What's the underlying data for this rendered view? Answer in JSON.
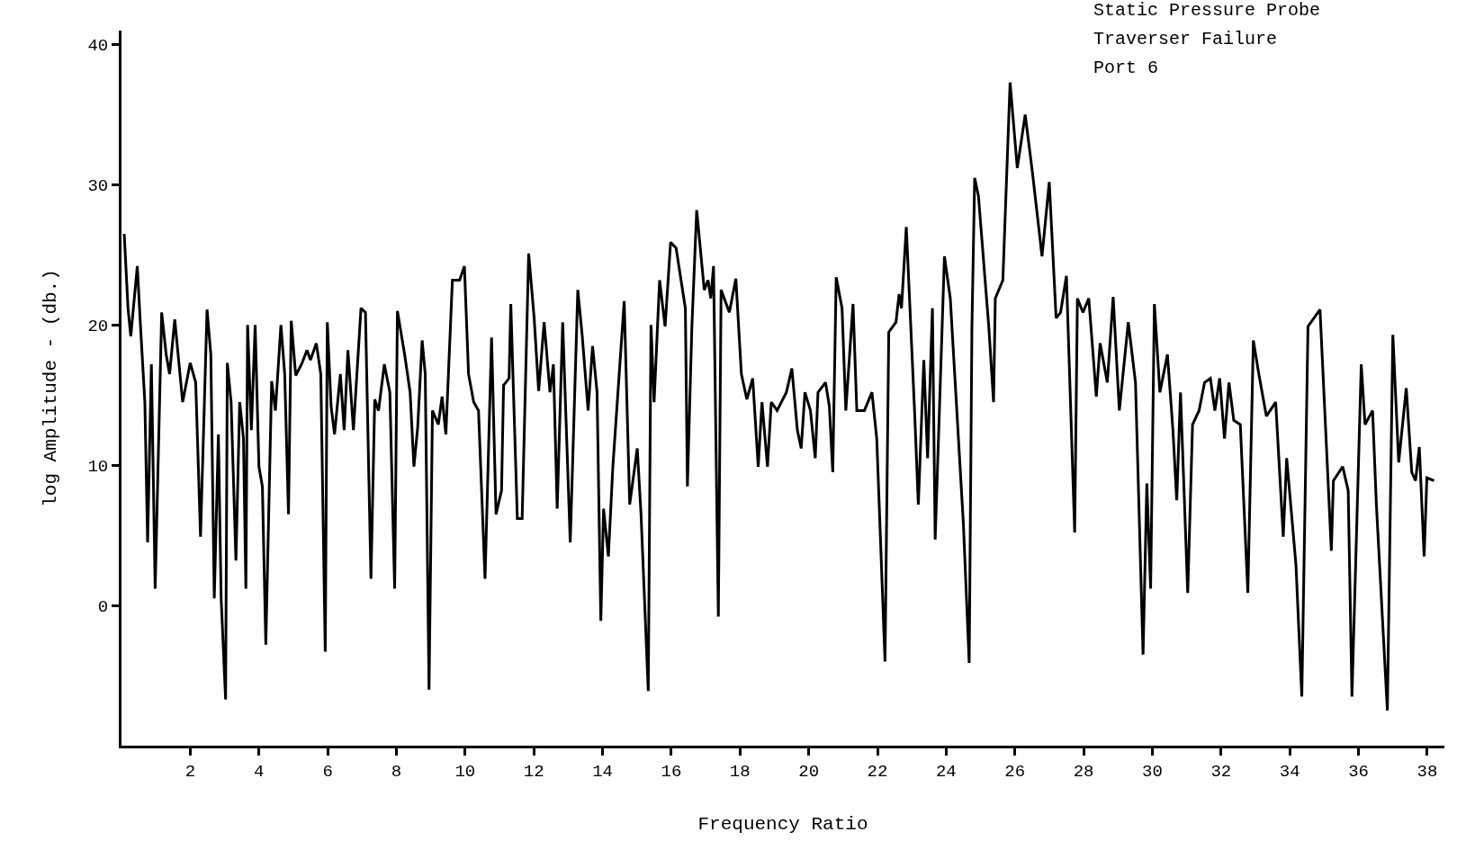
{
  "chart_data": {
    "type": "line",
    "xlabel": "Frequency Ratio",
    "ylabel": "log Amplitude - (db.)",
    "annotations": [
      "Static Pressure Probe",
      "Traverser Failure",
      "Port 6"
    ],
    "xlim": [
      0,
      38.5
    ],
    "xticks": [
      2,
      4,
      6,
      8,
      10,
      12,
      14,
      16,
      18,
      20,
      22,
      24,
      26,
      28,
      30,
      32,
      34,
      36,
      38
    ],
    "ylim": [
      -10,
      41
    ],
    "yticks": [
      0,
      10,
      20,
      30,
      40
    ],
    "grid": false,
    "marker": "none",
    "line_style": "solid",
    "series": [
      {
        "color": "#000000",
        "x": [
          0.08,
          0.19,
          0.27,
          0.46,
          0.54,
          0.68,
          0.76,
          0.87,
          0.98,
          1.17,
          1.3,
          1.4,
          1.55,
          1.78,
          2.0,
          2.16,
          2.3,
          2.49,
          2.6,
          2.7,
          2.82,
          2.9,
          3.03,
          3.08,
          3.19,
          3.33,
          3.44,
          3.55,
          3.62,
          3.67,
          3.78,
          3.89,
          4.0,
          4.1,
          4.2,
          4.37,
          4.48,
          4.64,
          4.75,
          4.86,
          4.94,
          5.07,
          5.24,
          5.4,
          5.5,
          5.67,
          5.8,
          5.93,
          5.99,
          6.1,
          6.2,
          6.37,
          6.48,
          6.59,
          6.75,
          6.97,
          7.1,
          7.26,
          7.37,
          7.48,
          7.65,
          7.81,
          7.95,
          8.03,
          8.24,
          8.4,
          8.51,
          8.62,
          8.75,
          8.84,
          8.95,
          9.05,
          9.22,
          9.33,
          9.44,
          9.63,
          9.84,
          9.98,
          10.1,
          10.25,
          10.39,
          10.58,
          10.77,
          10.9,
          11.06,
          11.12,
          11.28,
          11.33,
          11.52,
          11.66,
          11.85,
          12.01,
          12.14,
          12.3,
          12.47,
          12.57,
          12.68,
          12.84,
          13.06,
          13.28,
          13.41,
          13.58,
          13.71,
          13.84,
          13.95,
          14.03,
          14.17,
          14.3,
          14.63,
          14.79,
          15.01,
          15.12,
          15.33,
          15.41,
          15.5,
          15.66,
          15.82,
          15.98,
          16.14,
          16.41,
          16.47,
          16.6,
          16.74,
          16.96,
          17.07,
          17.15,
          17.23,
          17.37,
          17.45,
          17.69,
          17.88,
          18.04,
          18.2,
          18.37,
          18.53,
          18.64,
          18.8,
          18.91,
          19.08,
          19.35,
          19.51,
          19.67,
          19.78,
          19.89,
          20.05,
          20.19,
          20.27,
          20.49,
          20.6,
          20.7,
          20.8,
          20.97,
          21.08,
          21.29,
          21.4,
          21.62,
          21.84,
          21.98,
          22.22,
          22.33,
          22.54,
          22.63,
          22.7,
          22.84,
          23.08,
          23.19,
          23.35,
          23.46,
          23.6,
          23.68,
          23.95,
          24.12,
          24.5,
          24.67,
          24.75,
          24.83,
          24.94,
          25.24,
          25.38,
          25.43,
          25.65,
          25.86,
          26.07,
          26.3,
          26.51,
          26.79,
          27.0,
          27.2,
          27.33,
          27.5,
          27.74,
          27.82,
          27.98,
          28.15,
          28.37,
          28.48,
          28.69,
          28.86,
          29.04,
          29.3,
          29.51,
          29.73,
          29.84,
          29.95,
          30.06,
          30.22,
          30.44,
          30.6,
          30.71,
          30.82,
          31.03,
          31.17,
          31.36,
          31.52,
          31.69,
          31.82,
          31.96,
          32.1,
          32.23,
          32.37,
          32.56,
          32.78,
          32.94,
          33.1,
          33.32,
          33.59,
          33.81,
          33.91,
          34.18,
          34.35,
          34.53,
          34.88,
          35.21,
          35.27,
          35.54,
          35.7,
          35.81,
          36.08,
          36.19,
          36.41,
          36.52,
          36.84,
          37.0,
          37.17,
          37.39,
          37.55,
          37.66,
          37.77,
          37.91,
          37.99,
          38.2
        ],
        "values": [
          26.5,
          21.2,
          19.2,
          24.2,
          20.5,
          14.5,
          4.5,
          17.2,
          1.2,
          20.9,
          17.9,
          16.5,
          20.4,
          14.5,
          17.3,
          15.9,
          4.9,
          21.1,
          17.9,
          0.5,
          12.2,
          0.5,
          -6.7,
          17.3,
          14.5,
          3.2,
          14.5,
          11.9,
          1.2,
          20,
          12.5,
          20,
          9.9,
          8.5,
          -2.8,
          16,
          13.9,
          20,
          16.5,
          6.5,
          20.3,
          16.4,
          17.2,
          18.2,
          17.5,
          18.7,
          16.5,
          -3.3,
          20.2,
          14.2,
          12.2,
          16.5,
          12.5,
          18.2,
          12.5,
          21.2,
          20.9,
          1.9,
          14.7,
          13.9,
          17.2,
          15.2,
          1.2,
          21,
          17.9,
          15.2,
          9.9,
          12.7,
          18.9,
          16.5,
          -6,
          13.9,
          12.9,
          14.9,
          12.2,
          23.2,
          23.2,
          24.2,
          16.5,
          14.5,
          13.9,
          1.9,
          19.1,
          6.5,
          8.2,
          15.7,
          16.2,
          21.5,
          6.2,
          6.2,
          25.1,
          20.5,
          15.3,
          20.2,
          15.2,
          17.2,
          6.9,
          20.2,
          4.5,
          22.5,
          19.2,
          13.9,
          18.5,
          15.2,
          -1.1,
          6.9,
          3.5,
          9.9,
          21.7,
          7.2,
          11.2,
          6.5,
          -6.1,
          20,
          14.5,
          23.2,
          19.9,
          25.9,
          25.5,
          21.2,
          8.5,
          19.9,
          28.2,
          22.5,
          23.2,
          21.9,
          24.2,
          -0.8,
          22.5,
          20.9,
          23.3,
          16.5,
          14.7,
          16.2,
          9.9,
          14.5,
          9.9,
          14.5,
          13.9,
          15.2,
          16.9,
          12.5,
          11.2,
          15.2,
          13.9,
          10.5,
          15.2,
          15.9,
          14.2,
          9.5,
          23.4,
          21.2,
          13.9,
          21.5,
          13.9,
          13.9,
          15.2,
          11.9,
          -4,
          19.5,
          20.2,
          22.2,
          21.2,
          27,
          13.9,
          7.2,
          17.5,
          10.5,
          21.2,
          4.7,
          24.9,
          21.9,
          5.9,
          -4.1,
          19.9,
          30.5,
          29.2,
          19.9,
          14.5,
          21.9,
          23.2,
          37.3,
          31.2,
          35,
          30.9,
          24.9,
          30.2,
          20.5,
          20.9,
          23.5,
          5.2,
          21.9,
          20.9,
          21.9,
          14.9,
          18.7,
          15.9,
          22,
          13.9,
          20.2,
          15.9,
          -3.5,
          8.7,
          1.2,
          21.5,
          15.2,
          17.9,
          12.5,
          7.5,
          15.2,
          0.9,
          12.9,
          13.9,
          15.9,
          16.2,
          13.9,
          16.2,
          11.9,
          15.9,
          13.2,
          12.9,
          0.9,
          18.9,
          16.5,
          13.5,
          14.5,
          4.9,
          10.5,
          2.9,
          -6.5,
          19.9,
          21.1,
          3.9,
          8.9,
          9.9,
          8.2,
          -6.5,
          17.2,
          12.9,
          13.9,
          7.2,
          -7.5,
          19.3,
          10.2,
          15.5,
          9.5,
          8.9,
          11.3,
          3.5,
          9.1,
          8.9
        ]
      }
    ]
  }
}
